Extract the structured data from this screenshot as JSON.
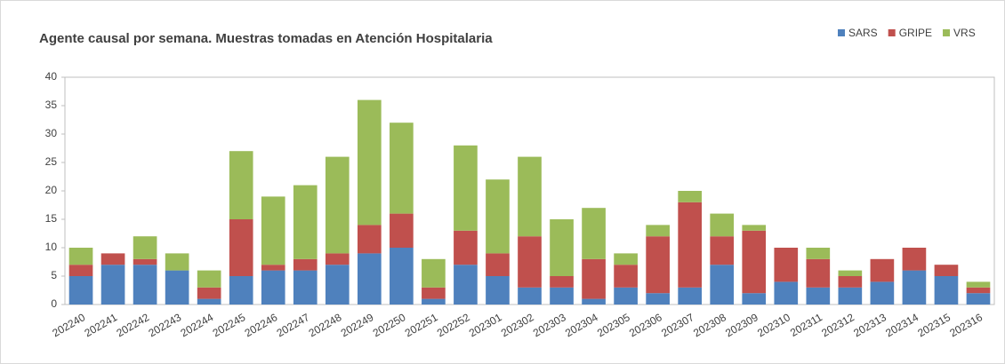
{
  "chart_data": {
    "type": "stacked_bar",
    "title": "Agente causal por semana. Muestras tomadas en Atención Hospitalaria",
    "categories": [
      "202240",
      "202241",
      "202242",
      "202243",
      "202244",
      "202245",
      "202246",
      "202247",
      "202248",
      "202249",
      "202250",
      "202251",
      "202252",
      "202301",
      "202302",
      "202303",
      "202304",
      "202305",
      "202306",
      "202307",
      "202308",
      "202309",
      "202310",
      "202311",
      "202312",
      "202313",
      "202314",
      "202315",
      "202316"
    ],
    "series": [
      {
        "name": "SARS",
        "color": "#4f81bd",
        "values": [
          5,
          7,
          7,
          6,
          1,
          5,
          6,
          6,
          7,
          9,
          10,
          1,
          7,
          5,
          3,
          3,
          1,
          3,
          2,
          3,
          7,
          2,
          4,
          3,
          3,
          4,
          6,
          5,
          2
        ]
      },
      {
        "name": "GRIPE",
        "color": "#c0504d",
        "values": [
          2,
          2,
          1,
          0,
          2,
          10,
          1,
          2,
          2,
          5,
          6,
          2,
          6,
          4,
          9,
          2,
          7,
          4,
          10,
          15,
          5,
          11,
          6,
          5,
          2,
          4,
          4,
          2,
          1
        ]
      },
      {
        "name": "VRS",
        "color": "#9bbb59",
        "values": [
          3,
          0,
          4,
          3,
          3,
          12,
          12,
          13,
          17,
          22,
          16,
          5,
          15,
          13,
          14,
          10,
          9,
          2,
          2,
          2,
          4,
          1,
          0,
          2,
          1,
          0,
          0,
          0,
          1
        ]
      }
    ],
    "ylim": [
      0,
      40
    ],
    "yticks": [
      0,
      5,
      10,
      15,
      20,
      25,
      30,
      35,
      40
    ],
    "legend": "top-right"
  }
}
